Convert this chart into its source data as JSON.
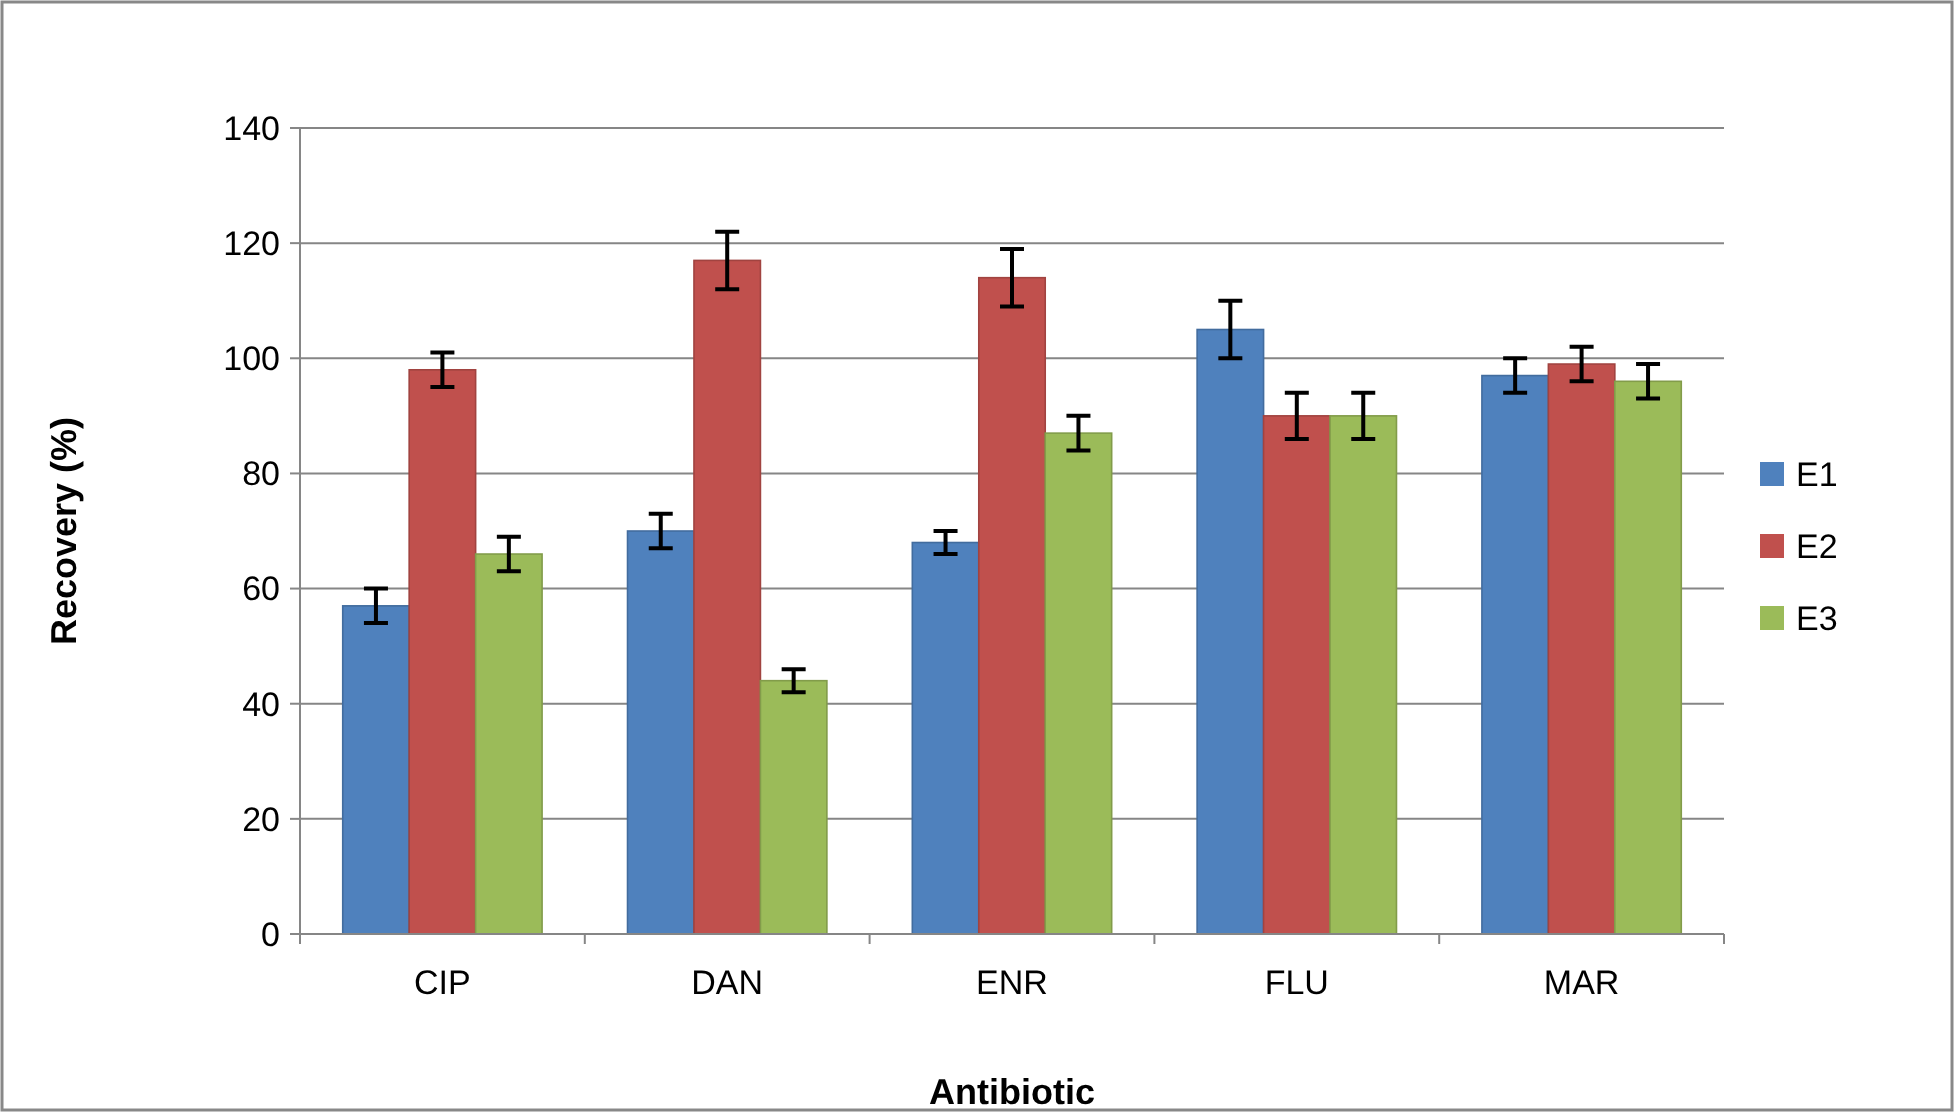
{
  "chart_data": {
    "type": "bar",
    "xlabel": "Antibiotic",
    "ylabel": "Recovery (%)",
    "categories": [
      "CIP",
      "DAN",
      "ENR",
      "FLU",
      "MAR"
    ],
    "series": [
      {
        "name": "E1",
        "color": "#4f81bd",
        "values": [
          57,
          70,
          68,
          105,
          97
        ],
        "errors": [
          3,
          3,
          2,
          5,
          3
        ]
      },
      {
        "name": "E2",
        "color": "#c0504d",
        "values": [
          98,
          117,
          114,
          90,
          99
        ],
        "errors": [
          3,
          5,
          5,
          4,
          3
        ]
      },
      {
        "name": "E3",
        "color": "#9bbb59",
        "values": [
          66,
          44,
          87,
          90,
          96
        ],
        "errors": [
          3,
          2,
          3,
          4,
          3
        ]
      }
    ],
    "ylim": [
      0,
      140
    ],
    "yticks": [
      0,
      20,
      40,
      60,
      80,
      100,
      120,
      140
    ],
    "grid": "y",
    "legend": "right"
  }
}
